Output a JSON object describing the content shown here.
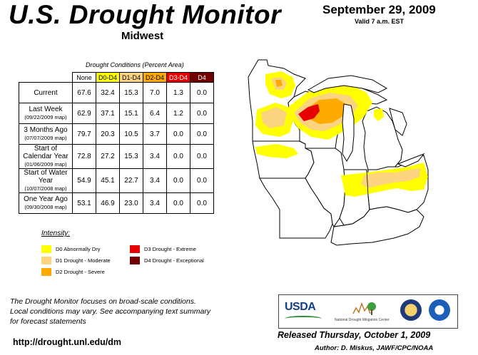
{
  "header": {
    "title": "U.S. Drought Monitor",
    "region": "Midwest",
    "date": "September 29, 2009",
    "valid": "Valid 7 a.m. EST"
  },
  "table": {
    "caption": "Drought Conditions (Percent Area)",
    "columns": [
      {
        "label": "None",
        "color": "#ffffff"
      },
      {
        "label": "D0-D4",
        "color": "#ffff00"
      },
      {
        "label": "D1-D4",
        "color": "#fcd37f"
      },
      {
        "label": "D2-D4",
        "color": "#ffaa00"
      },
      {
        "label": "D3-D4",
        "color": "#e60000"
      },
      {
        "label": "D4",
        "color": "#730000"
      }
    ],
    "rows": [
      {
        "label": "Current",
        "sub": "",
        "values": [
          "67.6",
          "32.4",
          "15.3",
          "7.0",
          "1.3",
          "0.0"
        ]
      },
      {
        "label": "Last Week",
        "sub": "(09/22/2009 map)",
        "values": [
          "62.9",
          "37.1",
          "15.1",
          "6.4",
          "1.2",
          "0.0"
        ]
      },
      {
        "label": "3 Months Ago",
        "sub": "(07/07/2009 map)",
        "values": [
          "79.7",
          "20.3",
          "10.5",
          "3.7",
          "0.0",
          "0.0"
        ]
      },
      {
        "label": "Start of Calendar Year",
        "sub": "(01/06/2009 map)",
        "values": [
          "72.8",
          "27.2",
          "15.3",
          "3.4",
          "0.0",
          "0.0"
        ]
      },
      {
        "label": "Start of Water Year",
        "sub": "(10/07/2008 map)",
        "values": [
          "54.9",
          "45.1",
          "22.7",
          "3.4",
          "0.0",
          "0.0"
        ]
      },
      {
        "label": "One Year Ago",
        "sub": "(09/30/2008 map)",
        "values": [
          "53.1",
          "46.9",
          "23.0",
          "3.4",
          "0.0",
          "0.0"
        ]
      }
    ]
  },
  "legend": {
    "title": "Intensity:",
    "items": [
      {
        "label": "D0 Abnormally Dry",
        "color": "#ffff00"
      },
      {
        "label": "D1 Drought - Moderate",
        "color": "#fcd37f"
      },
      {
        "label": "D2 Drought - Severe",
        "color": "#ffaa00"
      },
      {
        "label": "D3 Drought - Extreme",
        "color": "#e60000"
      },
      {
        "label": "D4 Drought - Exceptional",
        "color": "#730000"
      }
    ]
  },
  "footnote": {
    "line1": "The Drought Monitor focuses on broad-scale conditions.",
    "line2": "Local conditions may vary. See accompanying text summary",
    "line3": "for forecast statements"
  },
  "footer": {
    "url": "http://drought.unl.edu/dm",
    "released": "Released Thursday, October 1, 2009",
    "author": "Author: D. Miskus, JAWF/CPC/NOAA"
  },
  "logos": {
    "usda": "USDA",
    "ndmc": "National Drought Mitigation Center"
  }
}
